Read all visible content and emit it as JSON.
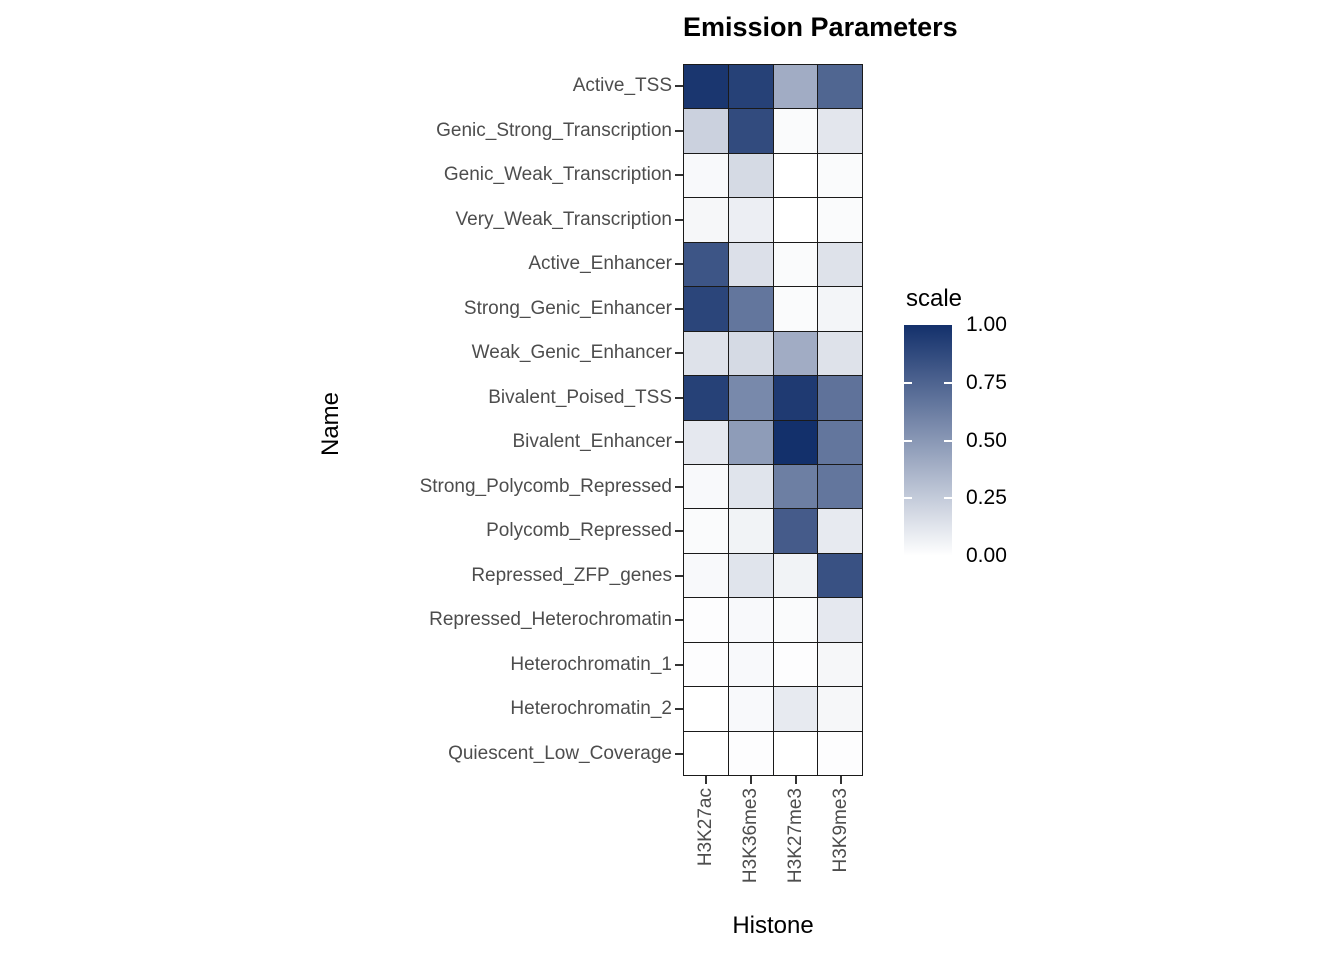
{
  "chart_data": {
    "type": "heatmap",
    "title": "Emission Parameters",
    "xlabel": "Histone",
    "ylabel": "Name",
    "columns": [
      "H3K27ac",
      "H3K36me3",
      "H3K27me3",
      "H3K9me3"
    ],
    "rows": [
      "Active_TSS",
      "Genic_Strong_Transcription",
      "Genic_Weak_Transcription",
      "Very_Weak_Transcription",
      "Active_Enhancer",
      "Strong_Genic_Enhancer",
      "Weak_Genic_Enhancer",
      "Bivalent_Poised_TSS",
      "Bivalent_Enhancer",
      "Strong_Polycomb_Repressed",
      "Polycomb_Repressed",
      "Repressed_ZFP_genes",
      "Repressed_Heterochromatin",
      "Heterochromatin_1",
      "Heterochromatin_2",
      "Quiescent_Low_Coverage"
    ],
    "values": [
      [
        0.97,
        0.92,
        0.4,
        0.74
      ],
      [
        0.22,
        0.87,
        0.02,
        0.12
      ],
      [
        0.03,
        0.18,
        0.0,
        0.02
      ],
      [
        0.04,
        0.08,
        0.0,
        0.02
      ],
      [
        0.82,
        0.15,
        0.02,
        0.14
      ],
      [
        0.9,
        0.66,
        0.02,
        0.05
      ],
      [
        0.14,
        0.18,
        0.4,
        0.14
      ],
      [
        0.92,
        0.57,
        0.95,
        0.68
      ],
      [
        0.11,
        0.48,
        1.0,
        0.66
      ],
      [
        0.03,
        0.13,
        0.62,
        0.66
      ],
      [
        0.02,
        0.06,
        0.79,
        0.1
      ],
      [
        0.03,
        0.13,
        0.06,
        0.84
      ],
      [
        0.01,
        0.03,
        0.02,
        0.11
      ],
      [
        0.01,
        0.03,
        0.01,
        0.04
      ],
      [
        0.0,
        0.03,
        0.1,
        0.04
      ],
      [
        0.0,
        0.01,
        0.0,
        0.01
      ]
    ],
    "legend": {
      "title": "scale",
      "ticks": [
        {
          "label": "1.00",
          "value": 1.0
        },
        {
          "label": "0.75",
          "value": 0.75
        },
        {
          "label": "0.50",
          "value": 0.5
        },
        {
          "label": "0.25",
          "value": 0.25
        },
        {
          "label": "0.00",
          "value": 0.0
        }
      ]
    },
    "colorscale": {
      "min": 0,
      "max": 1,
      "low": "#FFFFFF",
      "high": "#13306B"
    },
    "grid_line_color": "#1A1A1A",
    "axis_text_color": "#4D4D4D",
    "background": "#FFFFFF",
    "legend_position": "right",
    "grid": "tile-borders"
  }
}
